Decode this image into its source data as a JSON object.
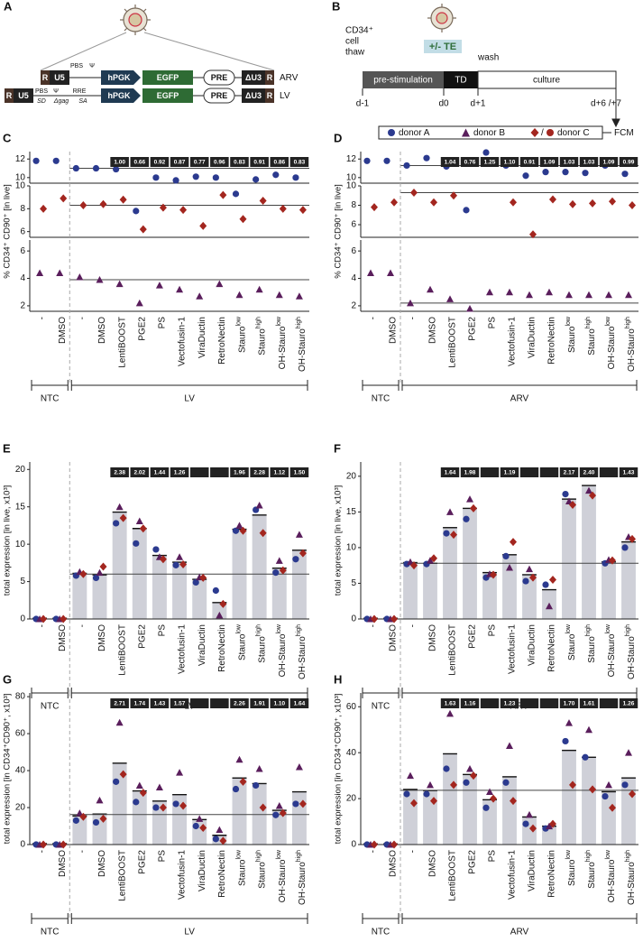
{
  "diagram_a": {
    "panel": "A",
    "arv": {
      "name": "ARV",
      "elements": [
        "R",
        "U5",
        "PBS",
        "Ψ",
        "hPGK",
        "EGFP",
        "PRE",
        "ΔU3",
        "R"
      ]
    },
    "lv": {
      "name": "LV",
      "elements": [
        "R",
        "U5",
        "PBS",
        "Ψ",
        "RRE",
        "SD",
        "Δgag",
        "SA",
        "hPGK",
        "EGFP",
        "PRE",
        "ΔU3",
        "R"
      ]
    }
  },
  "diagram_b": {
    "panel": "B",
    "thaw_label": [
      "CD34⁺",
      "cell",
      "thaw"
    ],
    "treatment": "+/- TE",
    "wash": "wash",
    "phases": [
      "pre-stimulation",
      "TD",
      "culture"
    ],
    "days": [
      "d-1",
      "d0",
      "d+1",
      "d+6 /+7"
    ],
    "readout": "FCM",
    "legend_separator": "/"
  },
  "chart_data": [
    {
      "type": "scatter",
      "panel": "C",
      "y_label": "% CD34⁺ CD90⁺ [in live]",
      "groups": [
        {
          "name": "NTC",
          "categories": [
            "-",
            "DMSO"
          ]
        },
        {
          "name": "LV",
          "categories": [
            "-",
            "DMSO",
            "LentiBOOST",
            "PGE2",
            "PS",
            "Vectofusin-1",
            "ViraDuctin",
            "RetroNectin",
            [
              "Stauro",
              "low"
            ],
            [
              "Stauro",
              "high"
            ],
            [
              "OH-Stauro",
              "low"
            ],
            [
              "OH-Stauro",
              "high"
            ]
          ]
        }
      ],
      "axis_segments": [
        {
          "ylim": [
            9.4,
            12.8
          ],
          "yticks": [
            10,
            12
          ]
        },
        {
          "ylim": [
            5.5,
            10
          ],
          "yticks": [
            6,
            8,
            10
          ]
        },
        {
          "ylim": [
            1.6,
            6.8
          ],
          "yticks": [
            2,
            4,
            6
          ]
        }
      ],
      "series": [
        {
          "name": "donor A",
          "color": "#2b3a8f",
          "marker": "circle",
          "values": [
            11.8,
            11.8,
            11.0,
            11.0,
            10.9,
            7.8,
            10.0,
            9.7,
            10.1,
            10.0,
            9.3,
            9.8,
            10.3,
            10.0
          ]
        },
        {
          "name": "donor B",
          "color": "#5a1e5c",
          "marker": "triangle",
          "values": [
            4.4,
            4.4,
            4.1,
            3.9,
            3.6,
            2.2,
            3.5,
            3.2,
            2.7,
            3.6,
            2.8,
            3.2,
            2.8,
            2.7
          ]
        },
        {
          "name": "donor C",
          "color": "#a3261f",
          "marker": "diamond",
          "values": [
            8.0,
            8.9,
            8.3,
            8.4,
            8.8,
            6.2,
            8.1,
            7.9,
            6.5,
            9.2,
            7.1,
            8.7,
            8.0,
            7.9
          ]
        }
      ],
      "reference_lines": [
        11.0,
        8.3,
        3.9
      ],
      "fold_changes": [
        "1.00",
        "0.66",
        "0.92",
        "0.87",
        "0.77",
        "0.96",
        "0.83",
        "0.91",
        "0.86",
        "0.83"
      ]
    },
    {
      "type": "scatter",
      "panel": "D",
      "y_label": "% CD34⁺ CD90⁺ [in live]",
      "groups": [
        {
          "name": "NTC",
          "categories": [
            "-",
            "DMSO"
          ]
        },
        {
          "name": "ARV",
          "categories": [
            "-",
            "DMSO",
            "LentiBOOST",
            "PGE2",
            "PS",
            "Vectofusin-1",
            "ViraDuctin",
            "RetroNectin",
            [
              "Stauro",
              "low"
            ],
            [
              "Stauro",
              "high"
            ],
            [
              "OH-Stauro",
              "low"
            ],
            [
              "OH-Stauro",
              "high"
            ]
          ]
        }
      ],
      "axis_segments": [
        {
          "ylim": [
            9.4,
            12.8
          ],
          "yticks": [
            10,
            12
          ]
        },
        {
          "ylim": [
            4.7,
            10
          ],
          "yticks": [
            6,
            8,
            10
          ]
        },
        {
          "ylim": [
            1.6,
            6.8
          ],
          "yticks": [
            2,
            4,
            6
          ]
        }
      ],
      "series": [
        {
          "name": "donor A",
          "color": "#2b3a8f",
          "marker": "circle",
          "values": [
            11.8,
            11.8,
            11.3,
            12.1,
            11.2,
            7.5,
            12.7,
            11.3,
            10.2,
            10.6,
            10.6,
            10.5,
            11.3,
            10.4
          ]
        },
        {
          "name": "donor B",
          "color": "#5a1e5c",
          "marker": "triangle",
          "values": [
            4.4,
            4.4,
            2.2,
            3.2,
            2.5,
            1.8,
            3.0,
            3.0,
            2.8,
            3.0,
            2.8,
            2.8,
            2.8,
            2.8
          ]
        },
        {
          "name": "donor C",
          "color": "#a3261f",
          "marker": "diamond",
          "values": [
            7.8,
            8.3,
            9.3,
            8.3,
            9.0,
            null,
            null,
            8.3,
            5.0,
            8.6,
            8.1,
            8.2,
            8.4,
            8.0
          ]
        }
      ],
      "reference_lines": [
        11.3,
        9.3,
        2.2
      ],
      "fold_changes": [
        "1.04",
        "0.76",
        "1.25",
        "1.10",
        "0.91",
        "1.09",
        "1.03",
        "1.03",
        "1.09",
        "0.99"
      ]
    },
    {
      "type": "bar",
      "panel": "E",
      "y_label": "total expression [in live, x10³]",
      "groups": [
        {
          "name": "NTC",
          "categories": [
            "-",
            "DMSO"
          ]
        },
        {
          "name": "LV",
          "categories": [
            "-",
            "DMSO",
            "LentiBOOST",
            "PGE2",
            "PS",
            "Vectofusin-1",
            "ViraDuctin",
            "RetroNectin",
            [
              "Stauro",
              "low"
            ],
            [
              "Stauro",
              "high"
            ],
            [
              "OH-Stauro",
              "low"
            ],
            [
              "OH-Stauro",
              "high"
            ]
          ]
        }
      ],
      "ylim": [
        0,
        21
      ],
      "yticks": [
        0,
        5,
        10,
        15,
        20
      ],
      "values": [
        0.1,
        0.1,
        6.1,
        5.9,
        14.3,
        12.1,
        8.5,
        7.6,
        5.3,
        2.2,
        12.0,
        13.9,
        6.8,
        9.2
      ],
      "series": [
        {
          "name": "donor A",
          "color": "#2b3a8f",
          "marker": "circle",
          "values": [
            0,
            0,
            5.8,
            5.5,
            12.8,
            10.1,
            9.3,
            7.2,
            4.9,
            3.8,
            11.8,
            14.6,
            6.2,
            8.0
          ]
        },
        {
          "name": "donor B",
          "color": "#5a1e5c",
          "marker": "triangle",
          "values": [
            0,
            0,
            6.3,
            6.2,
            15.0,
            13.1,
            8.3,
            8.3,
            5.6,
            0.5,
            12.5,
            15.2,
            7.8,
            11.3
          ]
        },
        {
          "name": "donor C",
          "color": "#a3261f",
          "marker": "diamond",
          "values": [
            0,
            0,
            6.0,
            7.0,
            13.5,
            12.1,
            8.0,
            7.3,
            5.5,
            2.0,
            11.8,
            11.5,
            6.5,
            8.8
          ]
        }
      ],
      "reference_lines": [
        6.0
      ],
      "fold_changes": [
        "2.38",
        "2.02",
        "1.44",
        "1.26",
        null,
        null,
        "1.96",
        "2.28",
        "1.12",
        "1.50"
      ]
    },
    {
      "type": "bar",
      "panel": "F",
      "y_label": "total expression [in live, x10³]",
      "groups": [
        {
          "name": "NTC",
          "categories": [
            "-",
            "DMSO"
          ]
        },
        {
          "name": "ARV",
          "categories": [
            "-",
            "DMSO",
            "LentiBOOST",
            "PGE2",
            "PS",
            "Vectofusin-1",
            "ViraDuctin",
            "RetroNectin",
            [
              "Stauro",
              "low"
            ],
            [
              "Stauro",
              "high"
            ],
            [
              "OH-Stauro",
              "low"
            ],
            [
              "OH-Stauro",
              "high"
            ]
          ]
        }
      ],
      "ylim": [
        0,
        22
      ],
      "yticks": [
        0,
        5,
        10,
        15,
        20
      ],
      "values": [
        0.1,
        0.1,
        7.9,
        7.8,
        12.8,
        15.5,
        6.5,
        9.0,
        6.2,
        4.1,
        16.8,
        18.7,
        8.0,
        10.8
      ],
      "series": [
        {
          "name": "donor A",
          "color": "#2b3a8f",
          "marker": "circle",
          "values": [
            0,
            0,
            7.7,
            7.7,
            12.0,
            14.0,
            5.8,
            8.8,
            5.3,
            4.8,
            17.5,
            20.5,
            7.8,
            10.0
          ]
        },
        {
          "name": "donor B",
          "color": "#5a1e5c",
          "marker": "triangle",
          "values": [
            0,
            0,
            8.0,
            8.2,
            15.0,
            16.8,
            6.3,
            7.2,
            7.0,
            1.8,
            16.5,
            18.0,
            8.3,
            11.5
          ]
        },
        {
          "name": "donor C",
          "color": "#a3261f",
          "marker": "diamond",
          "values": [
            0,
            0,
            7.5,
            8.5,
            11.8,
            15.5,
            6.2,
            10.8,
            5.8,
            5.5,
            16.0,
            17.3,
            8.2,
            11.2
          ]
        }
      ],
      "reference_lines": [
        7.8
      ],
      "fold_changes": [
        "1.64",
        "1.98",
        null,
        "1.19",
        null,
        null,
        "2.17",
        "2.40",
        null,
        "1.43"
      ]
    },
    {
      "type": "bar",
      "panel": "G",
      "y_label": "total expression [in CD34⁺CD90⁺, x10³]",
      "groups": [
        {
          "name": "NTC",
          "categories": [
            "-",
            "DMSO"
          ]
        },
        {
          "name": "LV",
          "categories": [
            "-",
            "DMSO",
            "LentiBOOST",
            "PGE2",
            "PS",
            "Vectofusin-1",
            "ViraDuctin",
            "RetroNectin",
            [
              "Stauro",
              "low"
            ],
            [
              "Stauro",
              "high"
            ],
            [
              "OH-Stauro",
              "low"
            ],
            [
              "OH-Stauro",
              "high"
            ]
          ]
        }
      ],
      "ylim": [
        0,
        82
      ],
      "yticks": [
        0,
        20,
        40,
        60,
        80
      ],
      "values": [
        0.5,
        0.5,
        15.5,
        16.5,
        44,
        29,
        23.5,
        27,
        13.5,
        5,
        36,
        33,
        18.5,
        28.5
      ],
      "series": [
        {
          "name": "donor A",
          "color": "#2b3a8f",
          "marker": "circle",
          "values": [
            0,
            0,
            13,
            12,
            34,
            23,
            20,
            22,
            10,
            3,
            30,
            32,
            16,
            22
          ]
        },
        {
          "name": "donor B",
          "color": "#5a1e5c",
          "marker": "triangle",
          "values": [
            0,
            0,
            17,
            24,
            66,
            32,
            31,
            39,
            14,
            8,
            46,
            41,
            21,
            42
          ]
        },
        {
          "name": "donor C",
          "color": "#a3261f",
          "marker": "diamond",
          "values": [
            0,
            0,
            15,
            14,
            38,
            28,
            20,
            21,
            9,
            2,
            34,
            20,
            17,
            22
          ]
        }
      ],
      "reference_lines": [
        16.2
      ],
      "fold_changes": [
        "2.71",
        "1.74",
        "1.43",
        "1.57",
        null,
        null,
        "2.26",
        "1.91",
        "1.10",
        "1.64"
      ]
    },
    {
      "type": "bar",
      "panel": "H",
      "y_label": "total expression [in CD34⁺CD90⁺, x10³]",
      "groups": [
        {
          "name": "NTC",
          "categories": [
            "-",
            "DMSO"
          ]
        },
        {
          "name": "ARV",
          "categories": [
            "-",
            "DMSO",
            "LentiBOOST",
            "PGE2",
            "PS",
            "Vectofusin-1",
            "ViraDuctin",
            "RetroNectin",
            [
              "Stauro",
              "low"
            ],
            [
              "Stauro",
              "high"
            ],
            [
              "OH-Stauro",
              "low"
            ],
            [
              "OH-Stauro",
              "high"
            ]
          ]
        }
      ],
      "ylim": [
        0,
        66
      ],
      "yticks": [
        0,
        20,
        40,
        60
      ],
      "values": [
        0.3,
        0.3,
        24,
        23.5,
        39.5,
        30.5,
        19.5,
        29.5,
        12,
        8,
        41,
        38,
        23,
        29
      ],
      "series": [
        {
          "name": "donor A",
          "color": "#2b3a8f",
          "marker": "circle",
          "values": [
            0,
            0,
            22,
            22,
            33,
            27,
            16,
            27,
            9,
            7,
            45,
            38,
            21,
            26
          ]
        },
        {
          "name": "donor B",
          "color": "#5a1e5c",
          "marker": "triangle",
          "values": [
            0,
            0,
            30,
            26,
            57,
            33,
            23,
            43,
            13,
            8,
            53,
            50,
            26,
            40
          ]
        },
        {
          "name": "donor C",
          "color": "#a3261f",
          "marker": "diamond",
          "values": [
            0,
            0,
            18,
            19,
            26,
            30,
            20,
            19,
            7,
            9,
            26,
            24,
            16,
            22
          ]
        }
      ],
      "reference_lines": [
        23.6
      ],
      "fold_changes": [
        "1.63",
        "1.16",
        null,
        "1.23",
        null,
        null,
        "1.70",
        "1.61",
        null,
        "1.26"
      ]
    }
  ]
}
